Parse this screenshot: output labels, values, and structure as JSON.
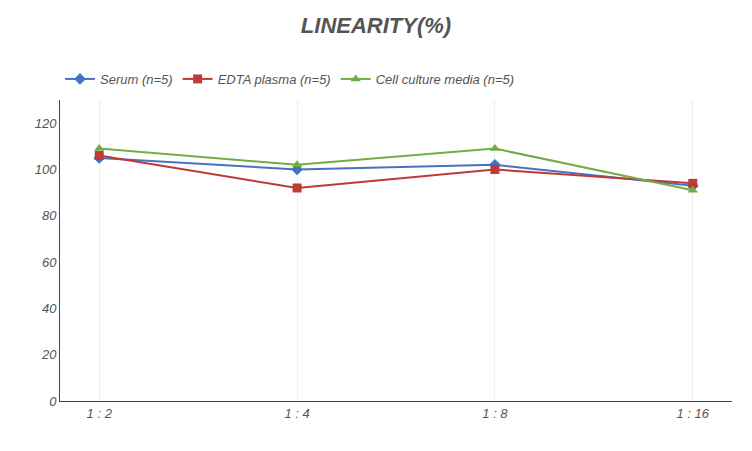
{
  "chart_data": {
    "type": "line",
    "title": "LINEARITY(%)",
    "categories": [
      "1 : 2",
      "1 : 4",
      "1 : 8",
      "1 : 16"
    ],
    "series": [
      {
        "name": "Serum (n=5)",
        "color": "#4472C4",
        "marker": "diamond",
        "values": [
          105,
          100,
          102,
          93
        ]
      },
      {
        "name": "EDTA plasma (n=5)",
        "color": "#BE3A34",
        "marker": "square",
        "values": [
          106,
          92,
          100,
          94
        ]
      },
      {
        "name": "Cell culture media (n=5)",
        "color": "#70AD47",
        "marker": "triangle-up",
        "values": [
          109,
          102,
          109,
          91
        ]
      }
    ],
    "ylim": [
      0,
      130
    ],
    "yticks": [
      0,
      20,
      40,
      60,
      80,
      100,
      120
    ],
    "grid": "x",
    "legend": "top left"
  }
}
